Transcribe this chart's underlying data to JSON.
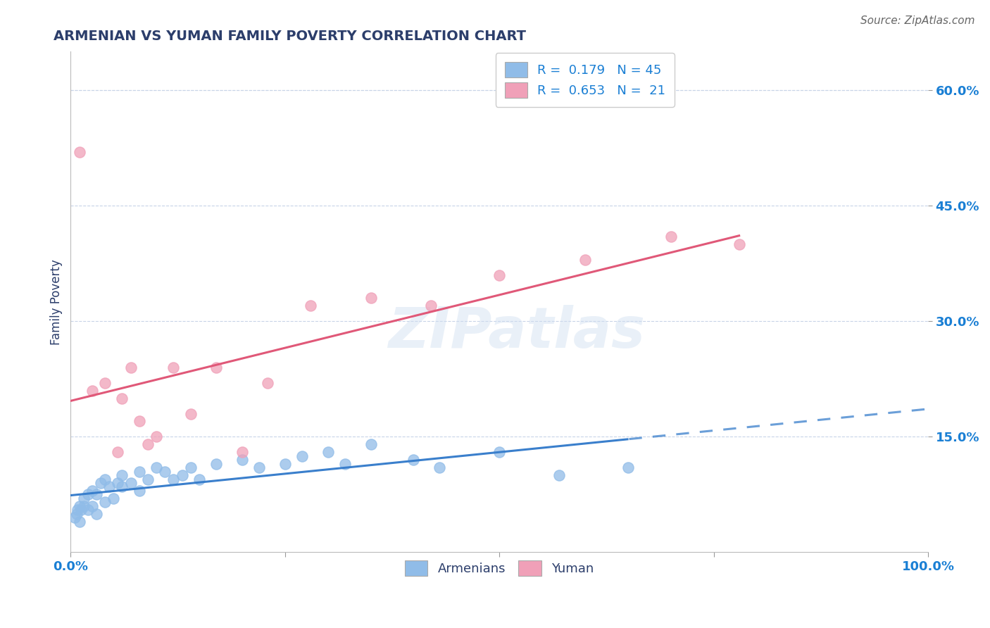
{
  "title": "ARMENIAN VS YUMAN FAMILY POVERTY CORRELATION CHART",
  "source": "Source: ZipAtlas.com",
  "ylabel": "Family Poverty",
  "ytick_labels": [
    "15.0%",
    "30.0%",
    "45.0%",
    "60.0%"
  ],
  "ytick_values": [
    15,
    30,
    45,
    60
  ],
  "xlim": [
    0,
    100
  ],
  "ylim": [
    0,
    65
  ],
  "legend_labels": [
    "Armenians",
    "Yuman"
  ],
  "watermark": "ZIPatlas",
  "title_color": "#2c3e6b",
  "axis_color": "#1a7fd4",
  "blue_color": "#90bce8",
  "pink_color": "#f0a0b8",
  "blue_line_color": "#3a7fcc",
  "pink_line_color": "#e05878",
  "armenian_points_x": [
    0.5,
    0.7,
    0.8,
    1.0,
    1.0,
    1.2,
    1.5,
    1.5,
    2.0,
    2.0,
    2.5,
    2.5,
    3.0,
    3.0,
    3.5,
    4.0,
    4.0,
    4.5,
    5.0,
    5.5,
    6.0,
    6.0,
    7.0,
    8.0,
    8.0,
    9.0,
    10.0,
    11.0,
    12.0,
    13.0,
    14.0,
    15.0,
    17.0,
    20.0,
    22.0,
    25.0,
    27.0,
    30.0,
    32.0,
    35.0,
    40.0,
    43.0,
    50.0,
    57.0,
    65.0
  ],
  "armenian_points_y": [
    4.5,
    5.0,
    5.5,
    4.0,
    6.0,
    5.5,
    7.0,
    6.0,
    5.5,
    7.5,
    6.0,
    8.0,
    5.0,
    7.5,
    9.0,
    6.5,
    9.5,
    8.5,
    7.0,
    9.0,
    8.5,
    10.0,
    9.0,
    10.5,
    8.0,
    9.5,
    11.0,
    10.5,
    9.5,
    10.0,
    11.0,
    9.5,
    11.5,
    12.0,
    11.0,
    11.5,
    12.5,
    13.0,
    11.5,
    14.0,
    12.0,
    11.0,
    13.0,
    10.0,
    11.0
  ],
  "yuman_points_x": [
    1.0,
    2.5,
    4.0,
    5.5,
    6.0,
    7.0,
    8.0,
    9.0,
    10.0,
    12.0,
    14.0,
    17.0,
    20.0,
    23.0,
    28.0,
    35.0,
    42.0,
    50.0,
    60.0,
    70.0,
    78.0
  ],
  "yuman_points_y": [
    52,
    21,
    22,
    13,
    20,
    24,
    17,
    14,
    15,
    24,
    18,
    24,
    13,
    22,
    32,
    33,
    32,
    36,
    38,
    41,
    40
  ],
  "background_color": "#ffffff",
  "grid_color": "#c8d4e8",
  "plot_bg_color": "#ffffff"
}
